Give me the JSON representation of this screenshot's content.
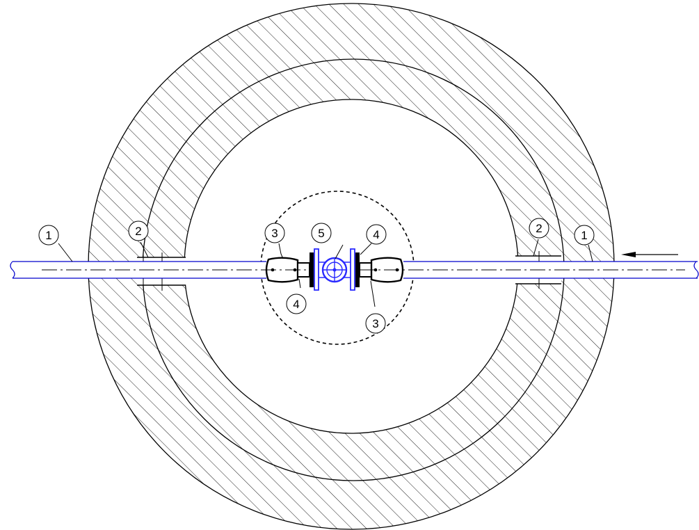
{
  "colors": {
    "background": "#ffffff",
    "linework": "#000000",
    "pipe": "#0000cc",
    "valve": "#2a2aff",
    "hatch": "#000000"
  },
  "callouts": {
    "left_pipe": "1",
    "left_sleeve": "2",
    "left_reducer": "3",
    "left_flange": "4",
    "valve": "5",
    "right_flange": "4",
    "right_reducer": "3",
    "right_sleeve": "2",
    "right_pipe": "1"
  },
  "flow_direction": "right-to-left"
}
